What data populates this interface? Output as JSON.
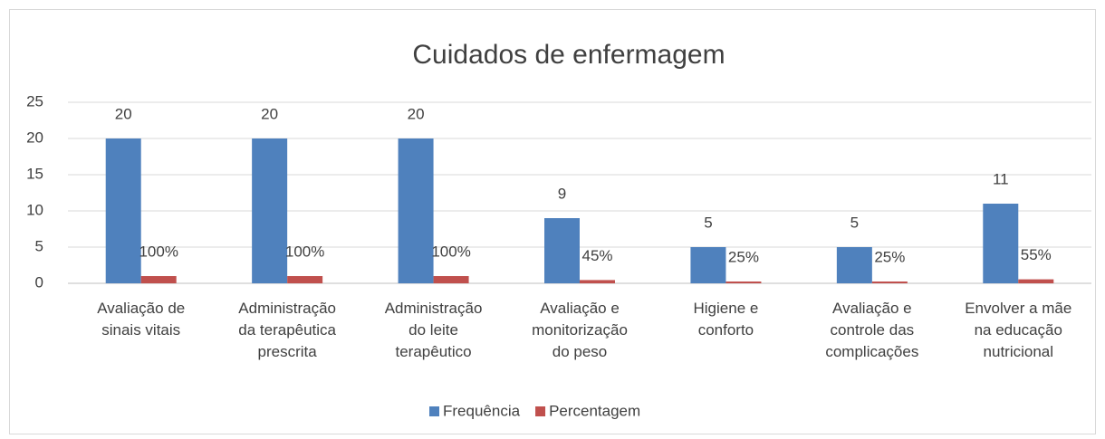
{
  "chart_data": {
    "type": "bar",
    "title": "Cuidados de enfermagem",
    "categories": [
      "Avaliação de sinais vitais",
      "Administração da terapêutica prescrita",
      "Administração do leite terapêutico",
      "Avaliação e monitorização do peso",
      "Higiene e conforto",
      "Avaliação e controle das complicações",
      "Envolver a mãe na educação nutricional"
    ],
    "series": [
      {
        "name": "Frequência",
        "color": "#4f81bd",
        "values": [
          20,
          20,
          20,
          9,
          5,
          5,
          11
        ]
      },
      {
        "name": "Percentagem",
        "color": "#c0504d",
        "values": [
          1,
          1,
          1,
          0.45,
          0.25,
          0.25,
          0.55
        ],
        "value_labels": [
          "100%",
          "100%",
          "100%",
          "45%",
          "25%",
          "25%",
          "55%"
        ]
      }
    ],
    "ylim": [
      0,
      25
    ],
    "yticks": [
      0,
      5,
      10,
      15,
      20,
      25
    ],
    "grid": true,
    "legend": "bottom"
  }
}
